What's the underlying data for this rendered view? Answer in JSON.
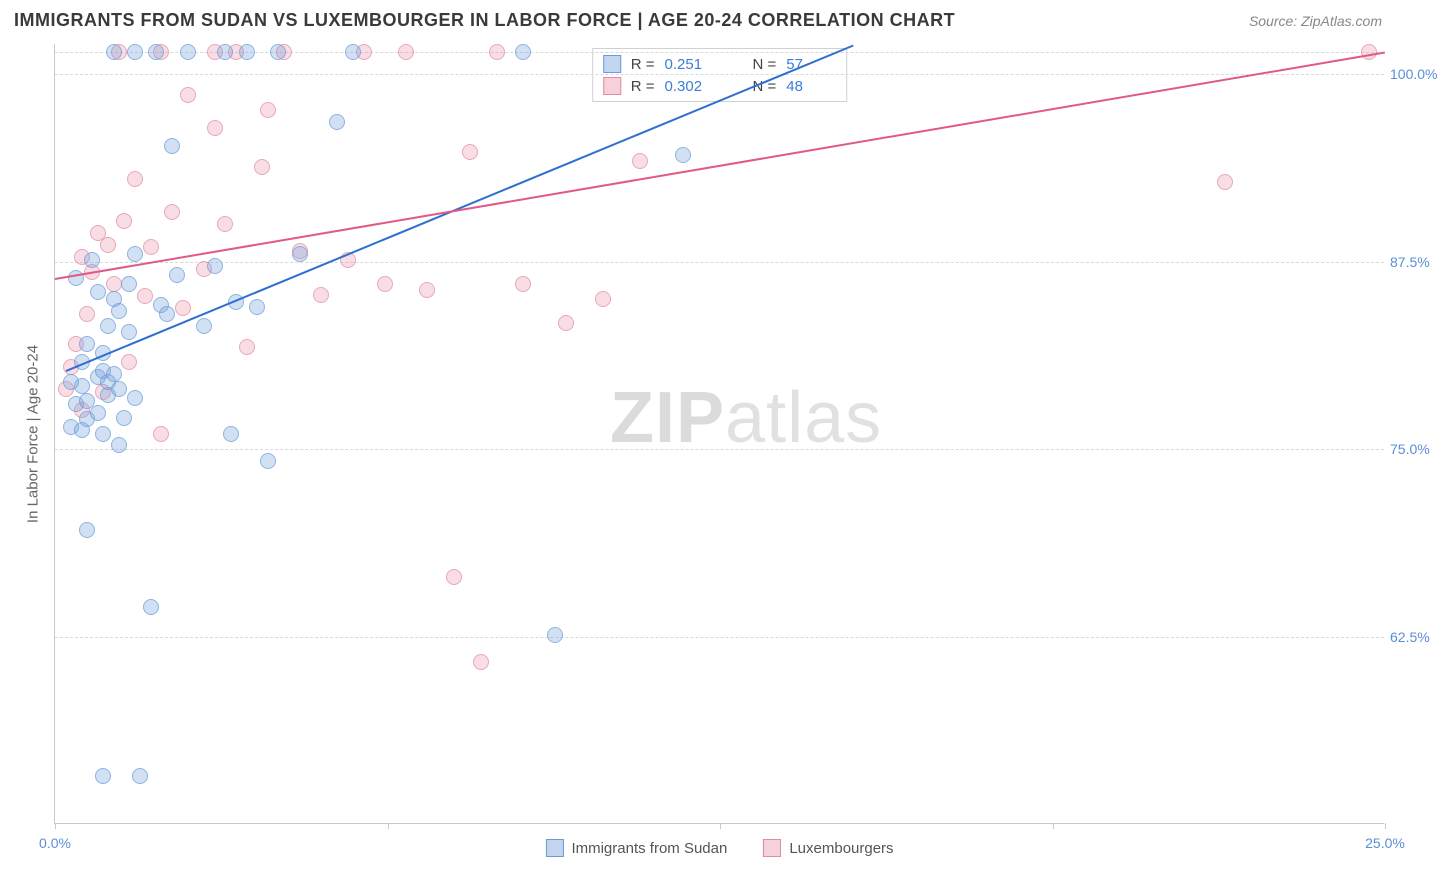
{
  "header": {
    "title": "IMMIGRANTS FROM SUDAN VS LUXEMBOURGER IN LABOR FORCE | AGE 20-24 CORRELATION CHART",
    "source": "Source: ZipAtlas.com"
  },
  "watermark": {
    "zip": "ZIP",
    "rest": "atlas"
  },
  "chart": {
    "type": "scatter",
    "ylabel": "In Labor Force | Age 20-24",
    "xlim": [
      0,
      25
    ],
    "ylim": [
      50,
      102
    ],
    "yticks": [
      {
        "v": 62.5,
        "label": "62.5%"
      },
      {
        "v": 75.0,
        "label": "75.0%"
      },
      {
        "v": 87.5,
        "label": "87.5%"
      },
      {
        "v": 100.0,
        "label": "100.0%"
      }
    ],
    "xticks": [
      {
        "v": 0,
        "label": "0.0%"
      },
      {
        "v": 6.25,
        "label": ""
      },
      {
        "v": 12.5,
        "label": ""
      },
      {
        "v": 18.75,
        "label": ""
      },
      {
        "v": 25,
        "label": "25.0%"
      }
    ],
    "gridline_top_v": 101.5,
    "series": {
      "a": {
        "name": "Immigrants from Sudan",
        "color_fill": "rgba(120,162,219,0.45)",
        "color_stroke": "#6a9bd8",
        "trend_color": "#2f6fd0",
        "r": "0.251",
        "n": "57",
        "trend": {
          "x1": 0.2,
          "y1": 80.3,
          "x2": 15.0,
          "y2": 102.0
        },
        "points": [
          [
            0.3,
            76.5
          ],
          [
            0.4,
            78.0
          ],
          [
            0.5,
            79.2
          ],
          [
            0.5,
            76.3
          ],
          [
            0.6,
            77.0
          ],
          [
            0.6,
            78.2
          ],
          [
            0.8,
            77.4
          ],
          [
            0.8,
            79.8
          ],
          [
            0.9,
            76.0
          ],
          [
            0.9,
            80.2
          ],
          [
            1.0,
            78.6
          ],
          [
            1.0,
            79.5
          ],
          [
            1.1,
            85.0
          ],
          [
            1.2,
            75.3
          ],
          [
            1.2,
            84.2
          ],
          [
            1.3,
            77.1
          ],
          [
            1.4,
            86.0
          ],
          [
            1.5,
            78.4
          ],
          [
            1.5,
            88.0
          ],
          [
            0.6,
            69.6
          ],
          [
            0.9,
            53.2
          ],
          [
            1.6,
            53.2
          ],
          [
            1.8,
            64.5
          ],
          [
            2.0,
            84.6
          ],
          [
            2.1,
            84.0
          ],
          [
            2.2,
            95.2
          ],
          [
            2.3,
            86.6
          ],
          [
            2.5,
            101.5
          ],
          [
            2.8,
            83.2
          ],
          [
            3.0,
            87.2
          ],
          [
            3.2,
            101.5
          ],
          [
            3.3,
            76.0
          ],
          [
            3.4,
            84.8
          ],
          [
            3.6,
            101.5
          ],
          [
            3.8,
            84.5
          ],
          [
            4.0,
            74.2
          ],
          [
            4.2,
            101.5
          ],
          [
            4.6,
            88.0
          ],
          [
            5.3,
            96.8
          ],
          [
            5.6,
            101.5
          ],
          [
            8.8,
            101.5
          ],
          [
            9.4,
            62.6
          ],
          [
            11.8,
            94.6
          ],
          [
            1.1,
            101.5
          ],
          [
            1.5,
            101.5
          ],
          [
            1.9,
            101.5
          ],
          [
            0.4,
            86.4
          ],
          [
            0.7,
            87.6
          ],
          [
            1.0,
            83.2
          ],
          [
            1.2,
            79.0
          ],
          [
            1.4,
            82.8
          ],
          [
            0.5,
            80.8
          ],
          [
            0.8,
            85.5
          ],
          [
            0.3,
            79.5
          ],
          [
            0.6,
            82.0
          ],
          [
            0.9,
            81.4
          ],
          [
            1.1,
            80.0
          ]
        ]
      },
      "b": {
        "name": "Luxembourgers",
        "color_fill": "rgba(236,140,163,0.40)",
        "color_stroke": "#e38aa1",
        "trend_color": "#e05a85",
        "r": "0.302",
        "n": "48",
        "trend": {
          "x1": 0.0,
          "y1": 86.4,
          "x2": 25.0,
          "y2": 101.5
        },
        "points": [
          [
            0.2,
            79.0
          ],
          [
            0.3,
            80.5
          ],
          [
            0.4,
            82.0
          ],
          [
            0.5,
            77.6
          ],
          [
            0.6,
            84.0
          ],
          [
            0.7,
            86.8
          ],
          [
            0.8,
            89.4
          ],
          [
            0.9,
            78.8
          ],
          [
            1.0,
            88.6
          ],
          [
            1.1,
            86.0
          ],
          [
            1.3,
            90.2
          ],
          [
            1.4,
            80.8
          ],
          [
            1.5,
            93.0
          ],
          [
            1.7,
            85.2
          ],
          [
            1.8,
            88.5
          ],
          [
            2.0,
            76.0
          ],
          [
            2.2,
            90.8
          ],
          [
            2.4,
            84.4
          ],
          [
            2.5,
            98.6
          ],
          [
            2.8,
            87.0
          ],
          [
            3.0,
            96.4
          ],
          [
            3.2,
            90.0
          ],
          [
            3.4,
            101.5
          ],
          [
            3.6,
            81.8
          ],
          [
            3.9,
            93.8
          ],
          [
            4.0,
            97.6
          ],
          [
            4.3,
            101.5
          ],
          [
            4.6,
            88.2
          ],
          [
            5.0,
            85.3
          ],
          [
            5.5,
            87.6
          ],
          [
            5.8,
            101.5
          ],
          [
            6.2,
            86.0
          ],
          [
            6.6,
            101.5
          ],
          [
            7.0,
            85.6
          ],
          [
            7.5,
            66.5
          ],
          [
            7.8,
            94.8
          ],
          [
            8.3,
            101.5
          ],
          [
            8.8,
            86.0
          ],
          [
            9.6,
            83.4
          ],
          [
            10.3,
            85.0
          ],
          [
            11.0,
            94.2
          ],
          [
            8.0,
            60.8
          ],
          [
            22.0,
            92.8
          ],
          [
            24.7,
            101.5
          ],
          [
            1.2,
            101.5
          ],
          [
            2.0,
            101.5
          ],
          [
            3.0,
            101.5
          ],
          [
            0.5,
            87.8
          ]
        ]
      }
    },
    "legend_top": {
      "r_label": "R  =",
      "n_label": "N  ="
    },
    "legend_bottom": {
      "a": "Immigrants from Sudan",
      "b": "Luxembourgers"
    }
  }
}
